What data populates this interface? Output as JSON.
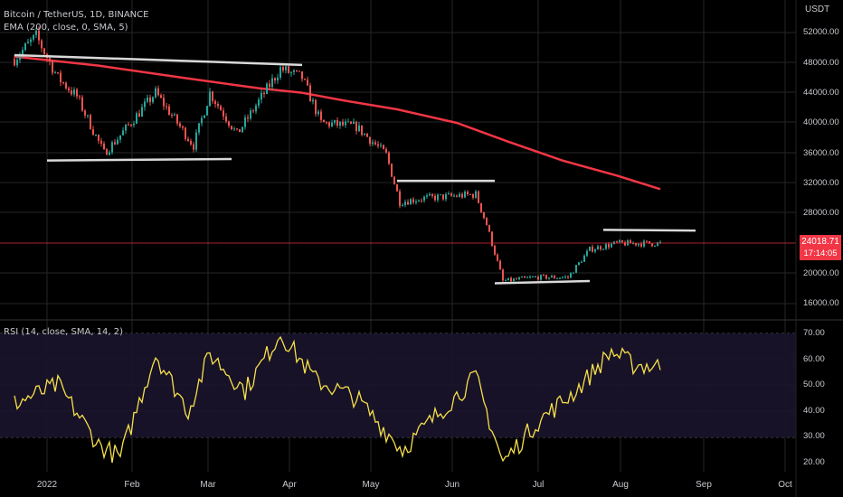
{
  "header": {
    "symbol_line": "Bitcoin / TetherUS, 1D, BINANCE",
    "ema_line": "EMA (200, close, 0, SMA, 5)",
    "rsi_line": "RSI (14, close, SMA, 14, 2)"
  },
  "price_axis": {
    "currency": "USDT",
    "ticks": [
      "52000.00",
      "48000.00",
      "44000.00",
      "40000.00",
      "36000.00",
      "32000.00",
      "28000.00",
      "20000.00",
      "16000.00"
    ],
    "current_price": "24018.71",
    "countdown": "17:14:05"
  },
  "rsi_axis": {
    "ticks": [
      "70.00",
      "60.00",
      "50.00",
      "40.00",
      "30.00",
      "20.00"
    ]
  },
  "time_axis": {
    "ticks": [
      "2022",
      "Feb",
      "Mar",
      "Apr",
      "May",
      "Jun",
      "Jul",
      "Aug",
      "Sep",
      "Oct"
    ]
  },
  "colors": {
    "background": "#000000",
    "up_candle": "#26a69a",
    "down_candle": "#ef5350",
    "ema": "#f23645",
    "rsi": "#f7e04b",
    "trendline": "#d9d9d9",
    "price_badge": "#f23645"
  },
  "chart_data": {
    "type": "candlestick",
    "price_range": [
      15000,
      54500
    ],
    "rsi_range": [
      18,
      72
    ],
    "ema_points": [
      [
        "2021-12-20",
        48800
      ],
      [
        "2022-01-20",
        47600
      ],
      [
        "2022-02-20",
        46000
      ],
      [
        "2022-03-20",
        44600
      ],
      [
        "2022-04-05",
        44000
      ],
      [
        "2022-04-20",
        43000
      ],
      [
        "2022-05-10",
        41800
      ],
      [
        "2022-06-01",
        40000
      ],
      [
        "2022-06-20",
        37500
      ],
      [
        "2022-07-10",
        35000
      ],
      [
        "2022-07-30",
        33000
      ],
      [
        "2022-08-15",
        31200
      ]
    ],
    "rsi_points": [
      [
        "2021-12-20",
        43
      ],
      [
        "2022-01-05",
        50
      ],
      [
        "2022-01-20",
        27
      ],
      [
        "2022-01-28",
        22
      ],
      [
        "2022-02-10",
        62
      ],
      [
        "2022-02-22",
        40
      ],
      [
        "2022-03-02",
        62
      ],
      [
        "2022-03-15",
        48
      ],
      [
        "2022-03-28",
        70
      ],
      [
        "2022-04-10",
        52
      ],
      [
        "2022-04-25",
        45
      ],
      [
        "2022-05-12",
        25
      ],
      [
        "2022-05-28",
        42
      ],
      [
        "2022-06-08",
        53
      ],
      [
        "2022-06-18",
        20
      ],
      [
        "2022-06-30",
        35
      ],
      [
        "2022-07-15",
        48
      ],
      [
        "2022-07-28",
        63
      ],
      [
        "2022-08-05",
        58
      ],
      [
        "2022-08-15",
        57
      ]
    ],
    "trendlines": [
      {
        "from": [
          "2021-12-20",
          49000
        ],
        "to": [
          "2022-04-05",
          47700
        ]
      },
      {
        "from": [
          "2022-01-01",
          35000
        ],
        "to": [
          "2022-03-10",
          35200
        ]
      },
      {
        "from": [
          "2022-05-10",
          32300
        ],
        "to": [
          "2022-06-15",
          32300
        ]
      },
      {
        "from": [
          "2022-06-15",
          18700
        ],
        "to": [
          "2022-07-20",
          19000
        ]
      },
      {
        "from": [
          "2022-07-25",
          25800
        ],
        "to": [
          "2022-08-28",
          25700
        ]
      }
    ]
  }
}
